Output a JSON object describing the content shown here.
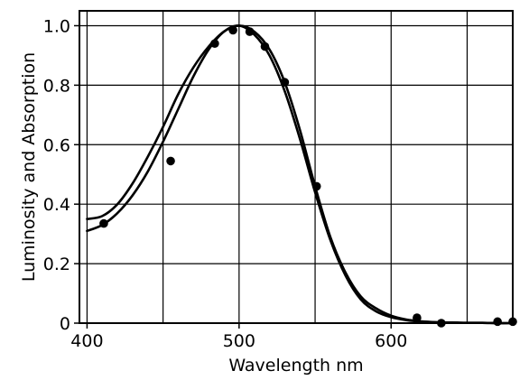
{
  "chart_data": {
    "type": "line",
    "title": "",
    "xlabel": "Wavelength nm",
    "ylabel": "Luminosity and Absorption",
    "xlim": [
      395,
      680
    ],
    "ylim": [
      0,
      1.05
    ],
    "x_ticks": [
      400,
      500,
      600
    ],
    "x_tick_labels": [
      "400",
      "500",
      "600"
    ],
    "y_ticks": [
      0,
      0.2,
      0.4,
      0.6,
      0.8,
      1.0
    ],
    "y_tick_labels": [
      "0",
      "0.2",
      "0.4",
      "0.6",
      "0.8",
      "1.0"
    ],
    "grid": true,
    "series": [
      {
        "style": "line",
        "x": [
          400,
          410,
          420,
          430,
          440,
          450,
          460,
          470,
          480,
          490,
          500,
          510,
          520,
          530,
          540,
          550,
          560,
          570,
          580,
          590,
          600,
          610,
          620,
          630,
          640,
          650,
          660,
          670,
          680
        ],
        "y": [
          0.35,
          0.36,
          0.4,
          0.47,
          0.56,
          0.66,
          0.77,
          0.86,
          0.93,
          0.98,
          1.0,
          0.98,
          0.92,
          0.81,
          0.65,
          0.46,
          0.29,
          0.17,
          0.09,
          0.05,
          0.025,
          0.012,
          0.006,
          0.003,
          0.002,
          0.001,
          0.001,
          0.0,
          0.0
        ]
      },
      {
        "style": "line",
        "x": [
          400,
          410,
          420,
          430,
          440,
          450,
          460,
          470,
          480,
          490,
          500,
          510,
          520,
          530,
          540,
          550,
          560,
          570,
          580,
          590,
          600,
          610,
          620,
          630,
          640,
          650,
          660,
          670,
          680
        ],
        "y": [
          0.31,
          0.33,
          0.37,
          0.43,
          0.51,
          0.61,
          0.72,
          0.83,
          0.92,
          0.98,
          1.0,
          0.97,
          0.9,
          0.78,
          0.62,
          0.44,
          0.28,
          0.16,
          0.08,
          0.04,
          0.02,
          0.01,
          0.005,
          0.003,
          0.002,
          0.001,
          0.001,
          0.0,
          0.0
        ]
      },
      {
        "style": "scatter",
        "x": [
          411,
          455,
          484,
          496,
          507,
          517,
          530,
          551,
          617,
          633,
          670,
          680
        ],
        "y": [
          0.335,
          0.545,
          0.94,
          0.985,
          0.98,
          0.93,
          0.81,
          0.46,
          0.018,
          0.0,
          0.005,
          0.005
        ]
      }
    ]
  }
}
